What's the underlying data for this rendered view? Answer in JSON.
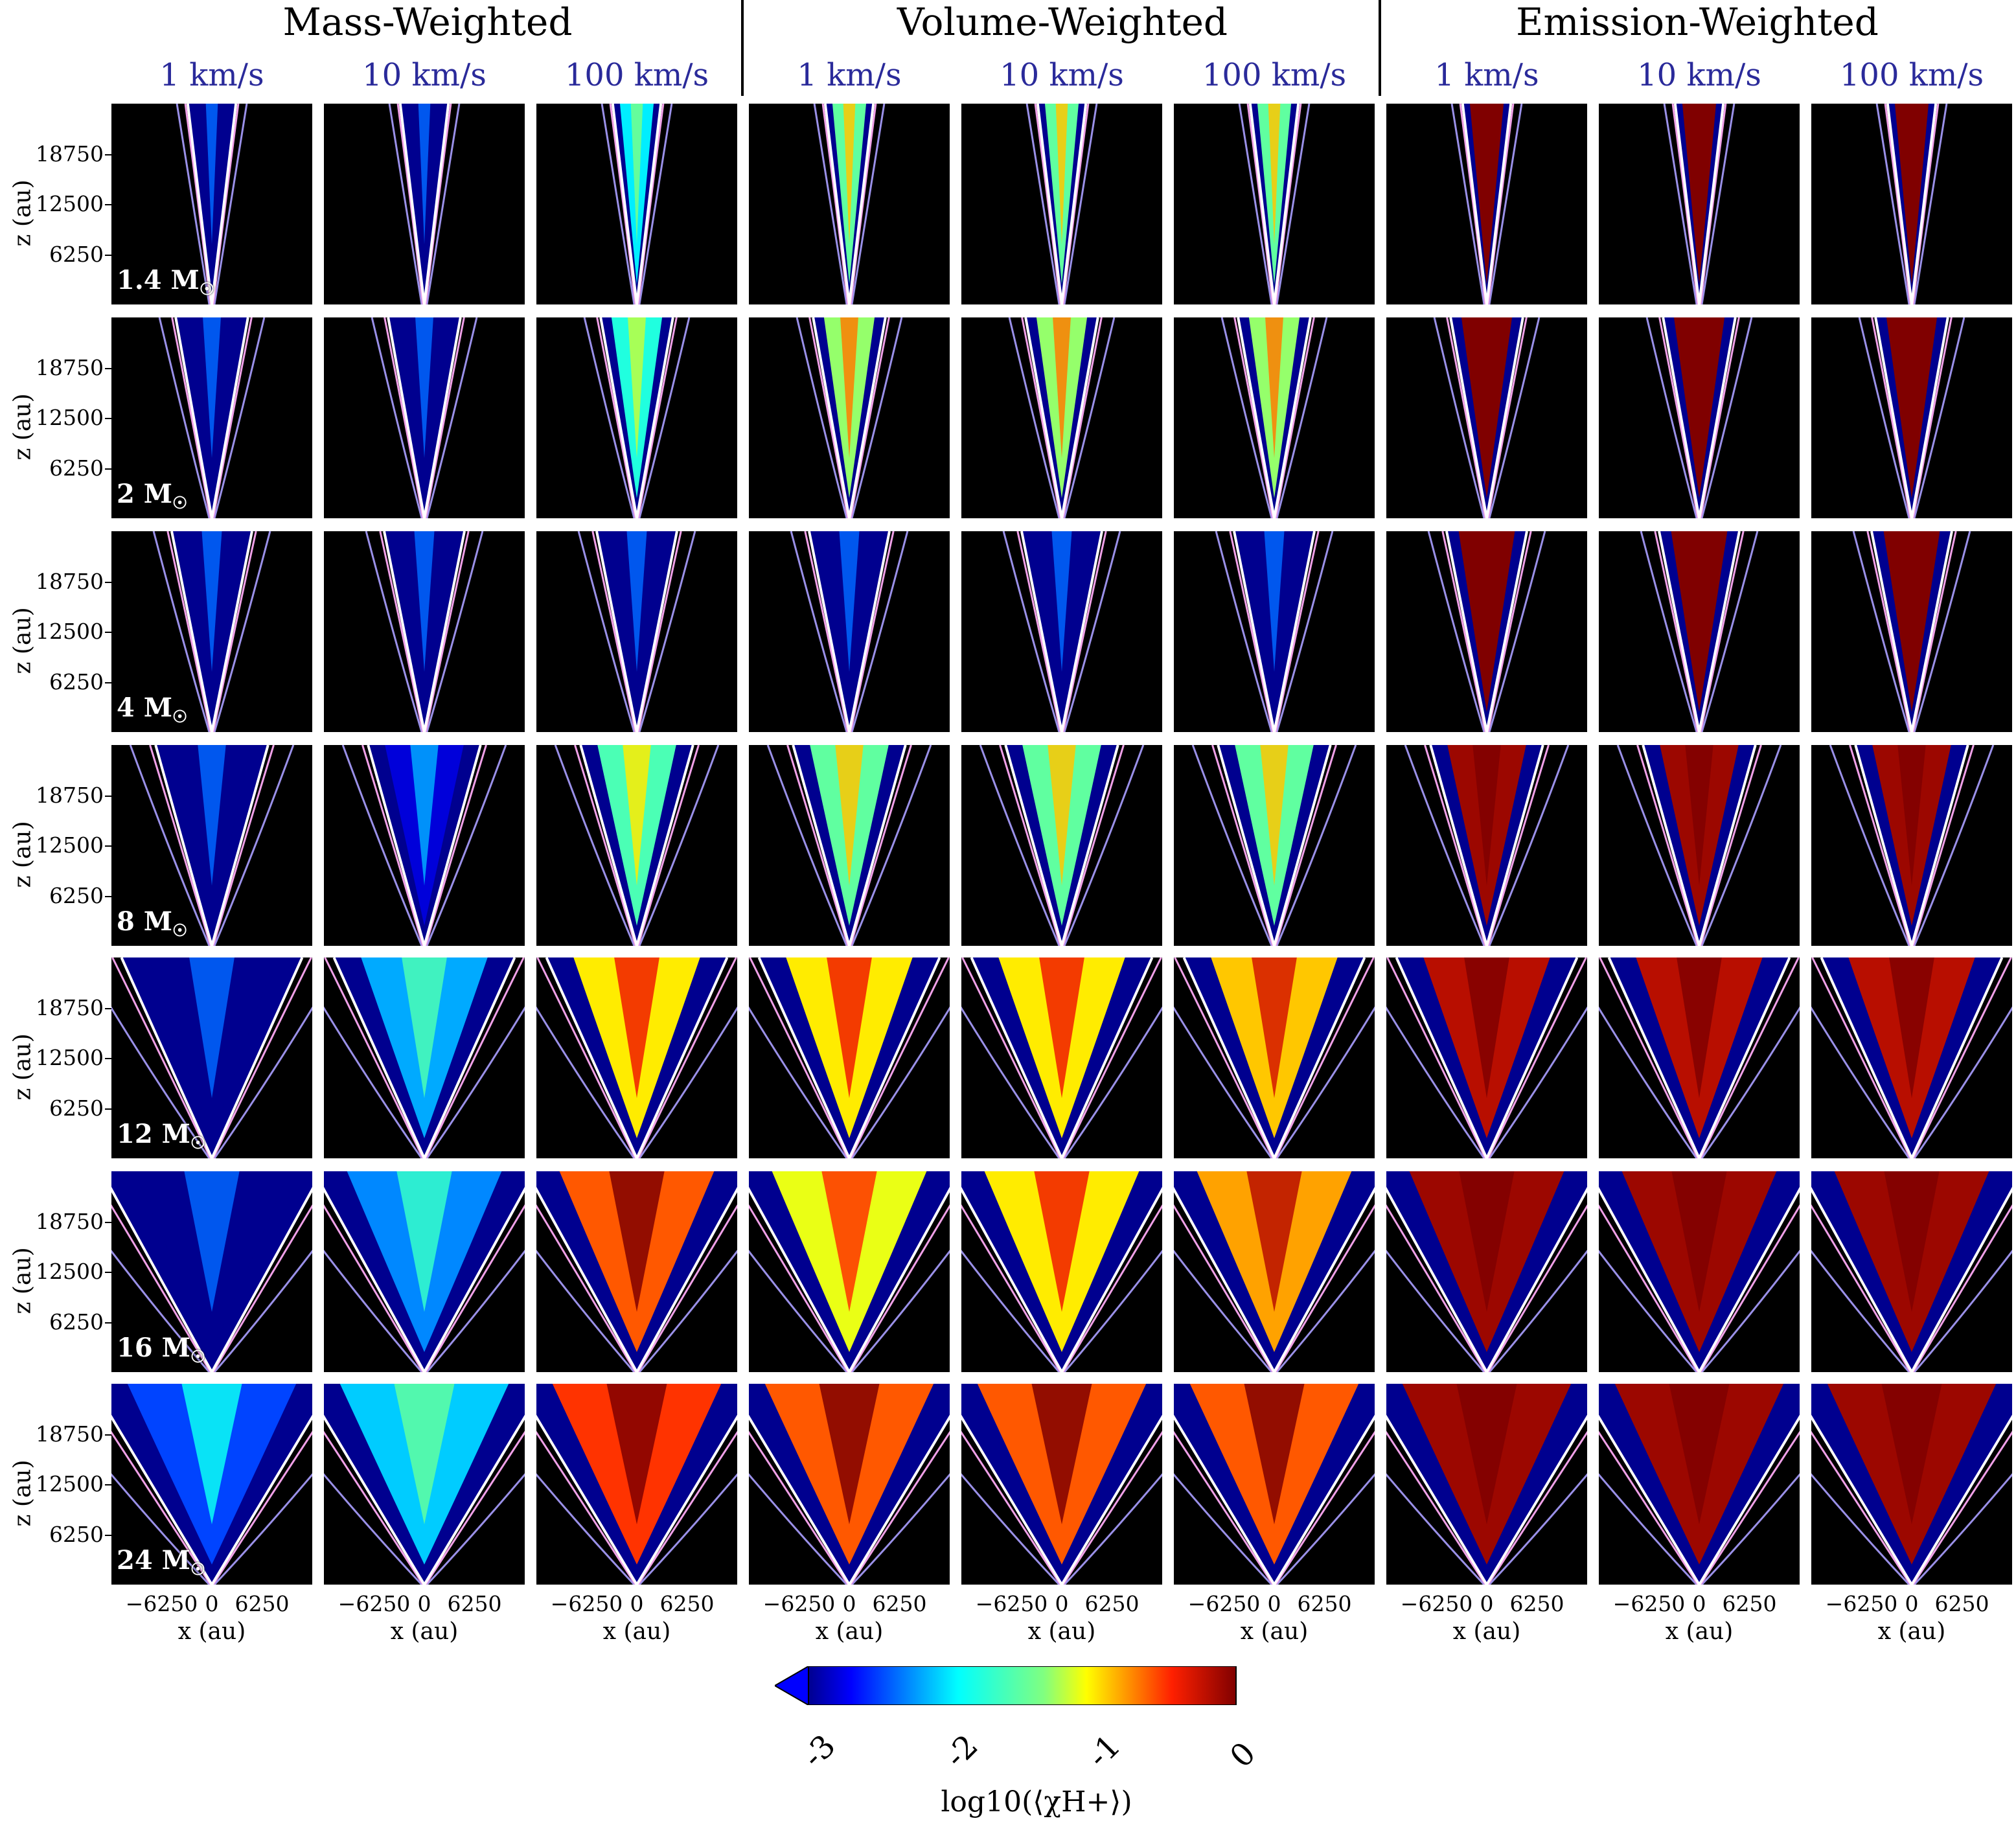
{
  "chart_data": {
    "type": "heatmap",
    "title": "",
    "group_titles": [
      "Mass-Weighted",
      "Volume-Weighted",
      "Emission-Weighted"
    ],
    "column_labels": [
      "1 km/s",
      "10 km/s",
      "100 km/s",
      "1 km/s",
      "10 km/s",
      "100 km/s",
      "1 km/s",
      "10 km/s",
      "100 km/s"
    ],
    "row_labels": [
      "1.4 M",
      "2 M",
      "4 M",
      "8 M",
      "12 M",
      "16 M",
      "24 M"
    ],
    "sun_symbol": "☉",
    "ylabel": "z (au)",
    "xlabel": "x (au)",
    "yticks": [
      "18750",
      "12500",
      "6250"
    ],
    "ytick_values": [
      18750,
      12500,
      6250
    ],
    "ylim": [
      0,
      25000
    ],
    "xticks": [
      "−6250",
      "0",
      "6250"
    ],
    "xtick_values": [
      -6250,
      0,
      6250
    ],
    "xlim": [
      -12500,
      12500
    ],
    "colorbar": {
      "label": "log10(⟨χH+⟩)",
      "ticks": [
        "-3",
        "-2",
        "-1",
        "0"
      ],
      "tick_values": [
        -3,
        -2,
        -1,
        0
      ],
      "range": [
        -3,
        0
      ],
      "colormap": "jet"
    },
    "cone_half_width_frac": [
      0.12,
      0.18,
      0.2,
      0.28,
      0.45,
      0.55,
      0.6
    ],
    "fill_level": [
      [
        -3.0,
        -3.0,
        -2.0,
        -1.5,
        -1.5,
        -1.5,
        0.0,
        0.0,
        0.0
      ],
      [
        -3.0,
        -3.0,
        -1.8,
        -1.3,
        -1.3,
        -1.3,
        0.0,
        0.0,
        0.0
      ],
      [
        -3.0,
        -3.0,
        -3.0,
        -3.0,
        -3.0,
        -3.0,
        0.0,
        0.0,
        0.0
      ],
      [
        -3.0,
        -2.8,
        -1.6,
        -1.5,
        -1.5,
        -1.5,
        -0.1,
        -0.1,
        -0.1
      ],
      [
        -3.0,
        -2.2,
        -1.0,
        -1.0,
        -1.0,
        -0.9,
        -0.2,
        -0.2,
        -0.2
      ],
      [
        -3.0,
        -2.3,
        -0.6,
        -1.1,
        -1.0,
        -0.8,
        -0.1,
        -0.1,
        -0.1
      ],
      [
        -2.5,
        -2.1,
        -0.5,
        -0.6,
        -0.6,
        -0.6,
        -0.1,
        -0.1,
        -0.1
      ]
    ]
  }
}
